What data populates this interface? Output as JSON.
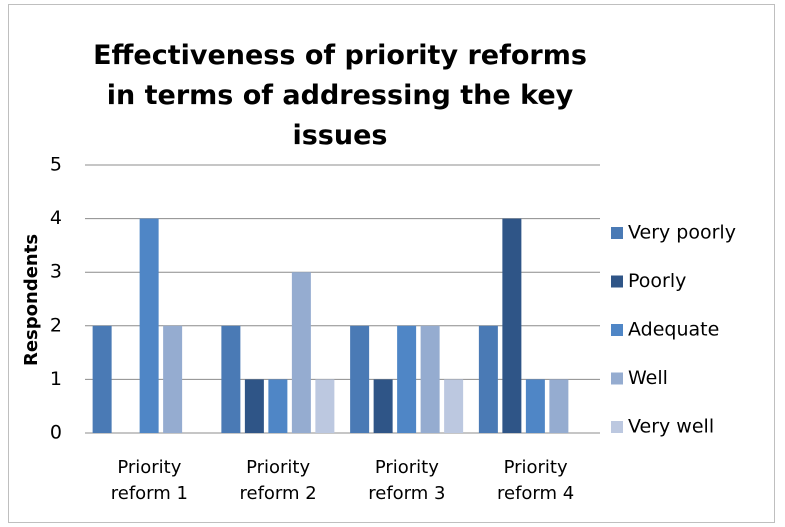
{
  "chart_data": {
    "type": "bar",
    "title": "Effectiveness of priority reforms in terms of addressing the key issues",
    "y_label": "Respondents",
    "categories": [
      "Priority reform 1",
      "Priority reform 2",
      "Priority reform 3",
      "Priority reform 4"
    ],
    "series": [
      {
        "name": "Very poorly",
        "color": "#4a7ab5",
        "values": [
          2,
          2,
          2,
          2
        ]
      },
      {
        "name": "Poorly",
        "color": "#2f5587",
        "values": [
          0,
          1,
          1,
          4
        ]
      },
      {
        "name": "Adequate",
        "color": "#4f86c6",
        "values": [
          4,
          1,
          2,
          1
        ]
      },
      {
        "name": "Well",
        "color": "#95acd0",
        "values": [
          2,
          3,
          2,
          1
        ]
      },
      {
        "name": "Very well",
        "color": "#bcc8e0",
        "values": [
          0,
          1,
          1,
          0
        ]
      }
    ],
    "ylim": [
      0,
      5
    ],
    "yticks": [
      0,
      1,
      2,
      3,
      4,
      5
    ],
    "grid": true,
    "legend": "right"
  }
}
